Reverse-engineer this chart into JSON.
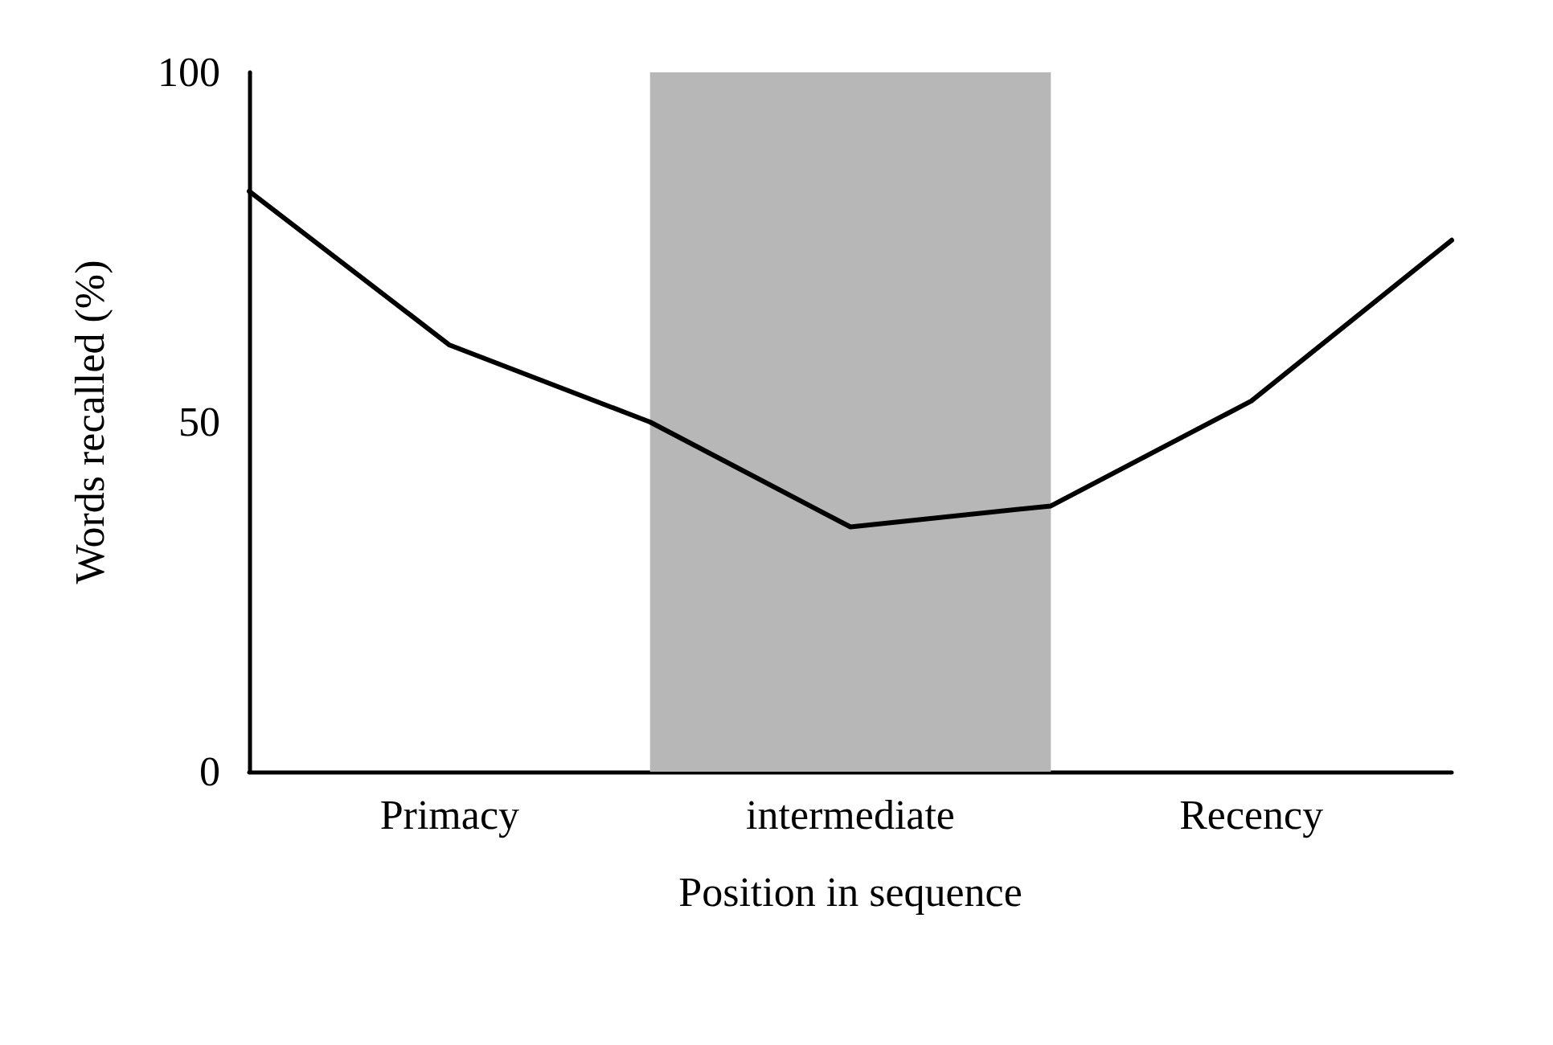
{
  "chart_data": {
    "type": "line",
    "xlabel": "Position in sequence",
    "ylabel": "Words recalled (%)",
    "categories": [
      null,
      "Primacy",
      null,
      "intermediate",
      null,
      "Recency",
      null
    ],
    "series": [
      {
        "color": "#000000",
        "values": [
          83,
          61,
          50,
          35,
          38,
          53,
          76
        ]
      }
    ],
    "ylim": [
      0,
      100
    ],
    "yticks": [
      0,
      50,
      100
    ],
    "grid": false,
    "marker": "none",
    "line_style": "solid"
  }
}
